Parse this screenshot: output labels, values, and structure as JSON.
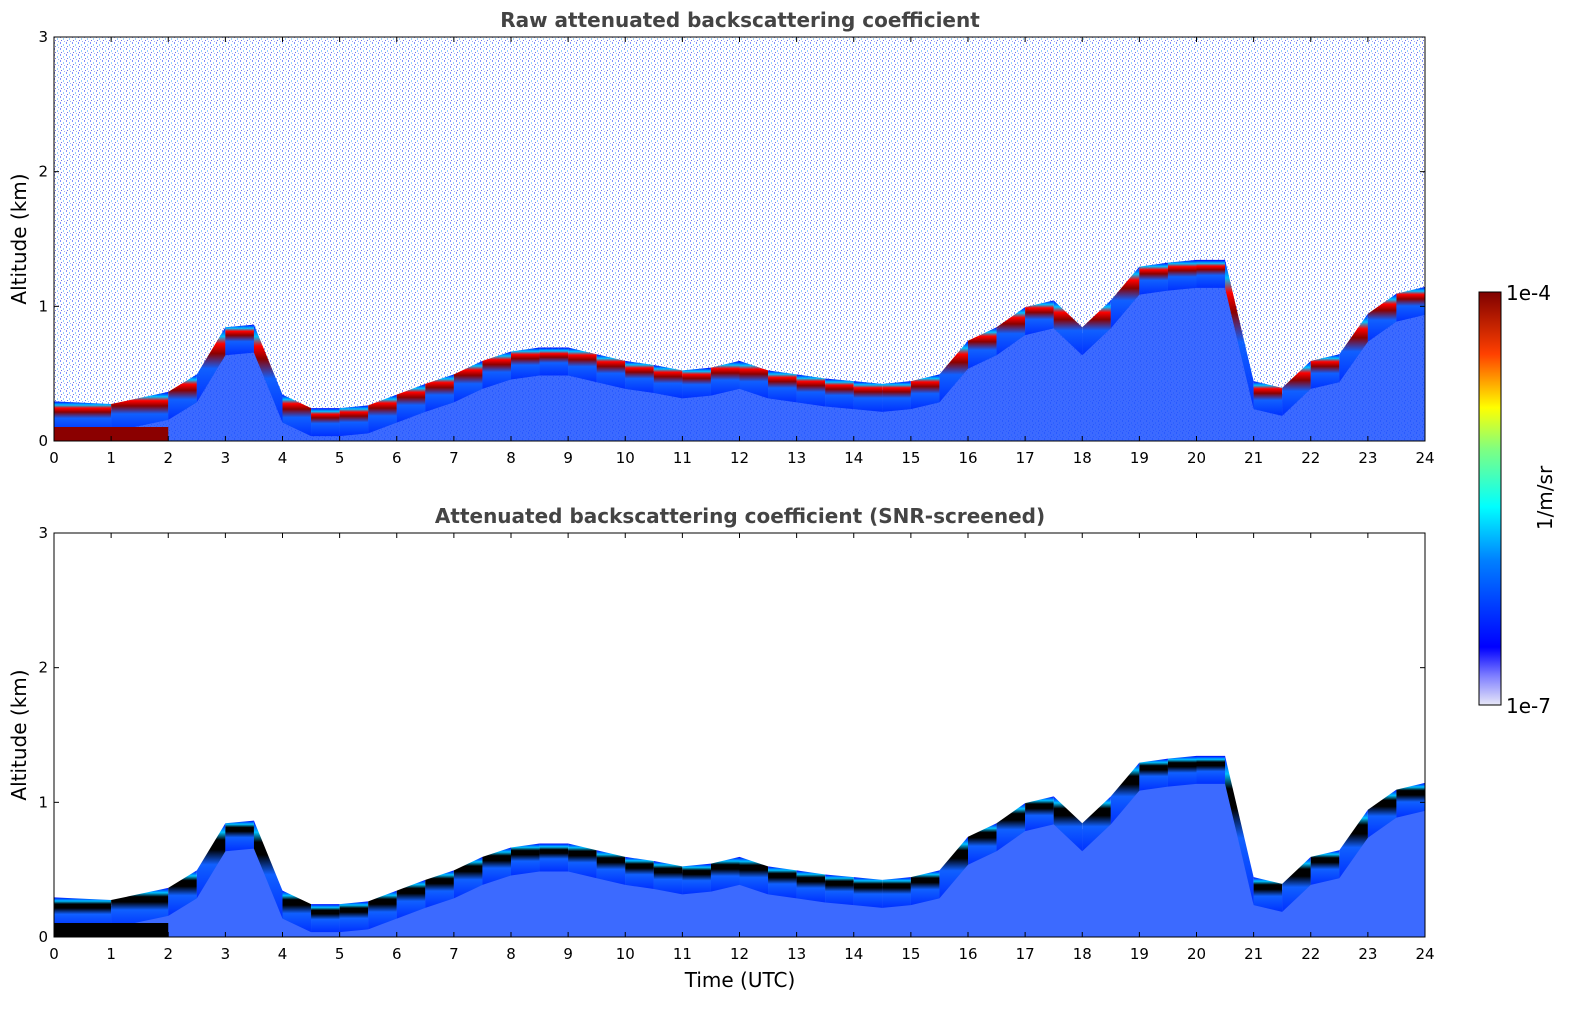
{
  "chart_data": [
    {
      "type": "heatmap",
      "title": "Raw attenuated backscattering coefficient",
      "xlabel": "",
      "ylabel": "Altitude (km)",
      "xlim": [
        0,
        24
      ],
      "ylim": [
        0,
        3
      ],
      "xticks": [
        "0",
        "1",
        "2",
        "3",
        "4",
        "5",
        "6",
        "7",
        "8",
        "9",
        "10",
        "11",
        "12",
        "13",
        "14",
        "15",
        "16",
        "17",
        "18",
        "19",
        "20",
        "21",
        "22",
        "23",
        "24"
      ],
      "yticks": [
        "0",
        "1",
        "2",
        "3"
      ],
      "layer_top_km": [
        [
          0,
          0.25
        ],
        [
          1,
          0.23
        ],
        [
          2,
          0.32
        ],
        [
          2.5,
          0.45
        ],
        [
          3,
          0.8
        ],
        [
          3.5,
          0.82
        ],
        [
          4,
          0.3
        ],
        [
          4.5,
          0.2
        ],
        [
          5,
          0.2
        ],
        [
          5.5,
          0.22
        ],
        [
          6,
          0.3
        ],
        [
          6.5,
          0.38
        ],
        [
          7,
          0.45
        ],
        [
          7.5,
          0.55
        ],
        [
          8,
          0.62
        ],
        [
          8.5,
          0.65
        ],
        [
          9,
          0.65
        ],
        [
          9.5,
          0.6
        ],
        [
          10,
          0.55
        ],
        [
          10.5,
          0.52
        ],
        [
          11,
          0.48
        ],
        [
          11.5,
          0.5
        ],
        [
          12,
          0.55
        ],
        [
          12.5,
          0.48
        ],
        [
          13,
          0.45
        ],
        [
          13.5,
          0.42
        ],
        [
          14,
          0.4
        ],
        [
          14.5,
          0.38
        ],
        [
          15,
          0.4
        ],
        [
          15.5,
          0.45
        ],
        [
          16,
          0.7
        ],
        [
          16.5,
          0.8
        ],
        [
          17,
          0.95
        ],
        [
          17.5,
          1.0
        ],
        [
          18,
          0.8
        ],
        [
          18.5,
          1.0
        ],
        [
          19,
          1.25
        ],
        [
          19.5,
          1.28
        ],
        [
          20,
          1.3
        ],
        [
          20.5,
          1.3
        ],
        [
          21,
          0.4
        ],
        [
          21.5,
          0.35
        ],
        [
          22,
          0.55
        ],
        [
          22.5,
          0.6
        ],
        [
          23,
          0.9
        ],
        [
          23.5,
          1.05
        ],
        [
          24,
          1.1
        ]
      ]
    },
    {
      "type": "heatmap",
      "title": "Attenuated backscattering coefficient (SNR-screened)",
      "xlabel": "Time (UTC)",
      "ylabel": "Altitude (km)",
      "xlim": [
        0,
        24
      ],
      "ylim": [
        0,
        3
      ],
      "xticks": [
        "0",
        "1",
        "2",
        "3",
        "4",
        "5",
        "6",
        "7",
        "8",
        "9",
        "10",
        "11",
        "12",
        "13",
        "14",
        "15",
        "16",
        "17",
        "18",
        "19",
        "20",
        "21",
        "22",
        "23",
        "24"
      ],
      "yticks": [
        "0",
        "1",
        "2",
        "3"
      ],
      "layer_top_km": [
        [
          0,
          0.25
        ],
        [
          1,
          0.23
        ],
        [
          2,
          0.32
        ],
        [
          2.5,
          0.45
        ],
        [
          3,
          0.8
        ],
        [
          3.5,
          0.82
        ],
        [
          4,
          0.3
        ],
        [
          4.5,
          0.2
        ],
        [
          5,
          0.2
        ],
        [
          5.5,
          0.22
        ],
        [
          6,
          0.3
        ],
        [
          6.5,
          0.38
        ],
        [
          7,
          0.45
        ],
        [
          7.5,
          0.55
        ],
        [
          8,
          0.62
        ],
        [
          8.5,
          0.65
        ],
        [
          9,
          0.65
        ],
        [
          9.5,
          0.6
        ],
        [
          10,
          0.55
        ],
        [
          10.5,
          0.52
        ],
        [
          11,
          0.48
        ],
        [
          11.5,
          0.5
        ],
        [
          12,
          0.55
        ],
        [
          12.5,
          0.48
        ],
        [
          13,
          0.45
        ],
        [
          13.5,
          0.42
        ],
        [
          14,
          0.4
        ],
        [
          14.5,
          0.38
        ],
        [
          15,
          0.4
        ],
        [
          15.5,
          0.45
        ],
        [
          16,
          0.7
        ],
        [
          16.5,
          0.8
        ],
        [
          17,
          0.95
        ],
        [
          17.5,
          1.0
        ],
        [
          18,
          0.8
        ],
        [
          18.5,
          1.0
        ],
        [
          19,
          1.25
        ],
        [
          19.5,
          1.28
        ],
        [
          20,
          1.3
        ],
        [
          20.5,
          1.3
        ],
        [
          21,
          0.4
        ],
        [
          21.5,
          0.35
        ],
        [
          22,
          0.55
        ],
        [
          22.5,
          0.6
        ],
        [
          23,
          0.9
        ],
        [
          23.5,
          1.05
        ],
        [
          24,
          1.1
        ]
      ]
    }
  ],
  "colorbar": {
    "label": "1/m/sr",
    "max_label": "1e-4",
    "min_label": "1e-7",
    "scale": "log",
    "colormap": [
      "#e8e8f8",
      "#0000ff",
      "#00ffff",
      "#ffff00",
      "#ff0000",
      "#7f0000"
    ]
  }
}
